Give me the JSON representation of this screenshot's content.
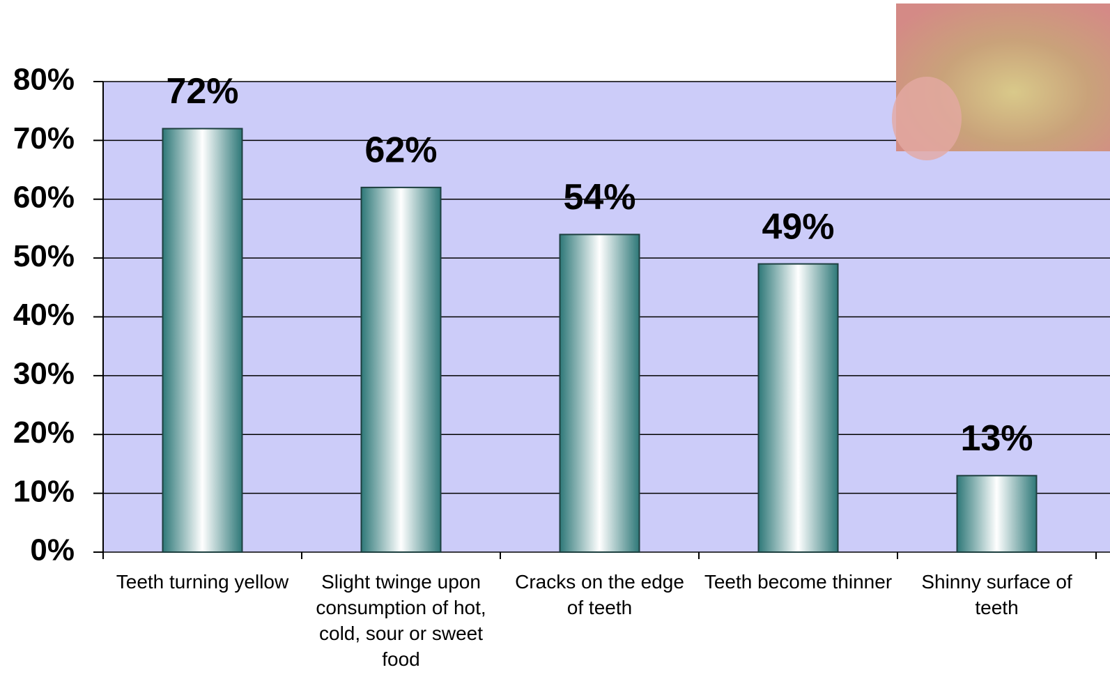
{
  "chart_data": {
    "type": "bar",
    "categories": [
      "Teeth turning yellow",
      "Slight twinge upon consumption of hot, cold, sour or sweet food",
      "Cracks on the edge of teeth",
      "Teeth become thinner",
      "Shinny surface of teeth"
    ],
    "values": [
      72,
      62,
      54,
      49,
      13
    ],
    "value_labels": [
      "72%",
      "62%",
      "54%",
      "49%",
      "13%"
    ],
    "color": "#2e7878",
    "ylim": [
      0,
      80
    ],
    "yticks": [
      {
        "value": 0,
        "label": "0%"
      },
      {
        "value": 10,
        "label": "10%"
      },
      {
        "value": 20,
        "label": "20%"
      },
      {
        "value": 30,
        "label": "30%"
      },
      {
        "value": 40,
        "label": "40%"
      },
      {
        "value": 50,
        "label": "50%"
      },
      {
        "value": 60,
        "label": "60%"
      },
      {
        "value": 70,
        "label": "70%"
      },
      {
        "value": 80,
        "label": "80%"
      }
    ],
    "grid": true
  }
}
